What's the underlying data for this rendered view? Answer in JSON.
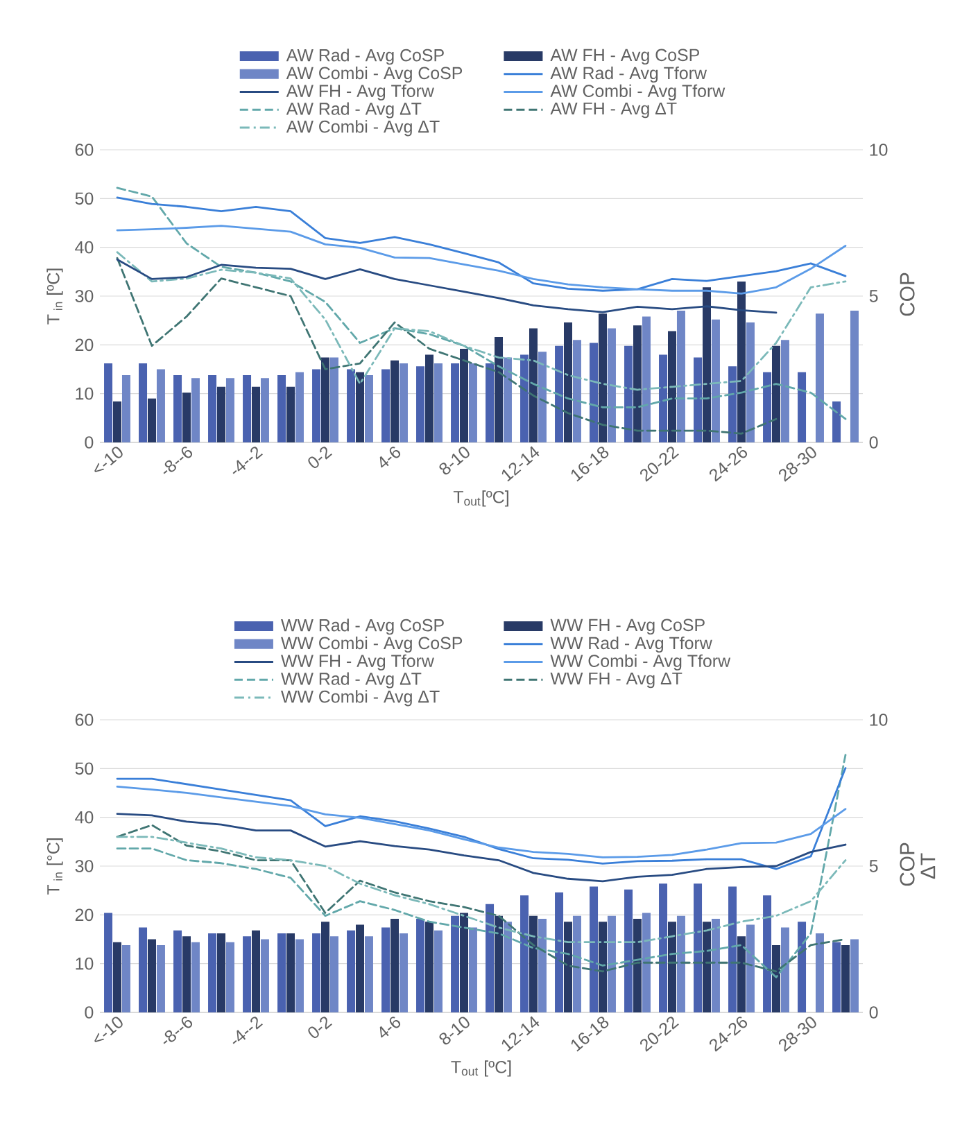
{
  "chart_data": [
    {
      "type": "bar",
      "categories": [
        "<-10",
        null,
        "-8--6",
        null,
        "-4--2",
        null,
        "0-2",
        null,
        "4-6",
        null,
        "8-10",
        null,
        "12-14",
        null,
        "16-18",
        null,
        "20-22",
        null,
        "24-26",
        null,
        "28-30",
        null
      ],
      "xlabel": "T$_{out}$[ºC]",
      "ylabel": "T$_{ in}$ [ºC]",
      "y2label": "COP",
      "ylim": [
        0,
        60
      ],
      "yticks": [
        0,
        10,
        20,
        30,
        40,
        50,
        60
      ],
      "y2lim": [
        0,
        10
      ],
      "y2ticks": [
        0,
        5,
        10
      ],
      "grid": "y",
      "legend": "top",
      "series": [
        {
          "name": "AW Rad - Avg CoSP",
          "axis": "y2",
          "color": "#4a62b0",
          "values": [
            2.7,
            2.7,
            2.3,
            2.3,
            2.3,
            2.3,
            2.5,
            2.5,
            2.5,
            2.6,
            2.7,
            2.7,
            3.0,
            3.3,
            3.4,
            3.3,
            3.0,
            2.9,
            2.6,
            2.4,
            2.4,
            1.4
          ]
        },
        {
          "name": "AW FH - Avg CoSP",
          "axis": "y2",
          "color": "#283a66",
          "values": [
            1.4,
            1.5,
            1.7,
            1.9,
            1.9,
            1.9,
            2.9,
            2.4,
            2.8,
            3.0,
            3.2,
            3.6,
            3.9,
            4.1,
            4.4,
            4.0,
            3.8,
            5.3,
            5.5,
            3.3,
            null,
            null
          ]
        },
        {
          "name": "AW Combi - Avg CoSP",
          "axis": "y2",
          "color": "#6f86c6",
          "values": [
            2.3,
            2.5,
            2.2,
            2.2,
            2.2,
            2.4,
            2.9,
            2.3,
            2.7,
            2.7,
            2.7,
            2.9,
            3.1,
            3.5,
            3.9,
            4.3,
            4.5,
            4.2,
            4.1,
            3.5,
            4.4,
            4.5
          ]
        },
        {
          "name": "AW Rad - Avg Tforw",
          "type": "line",
          "axis": "y",
          "line_style": "solid",
          "color": "#3a7fd8",
          "values": [
            50.2,
            48.9,
            48.3,
            47.4,
            48.3,
            47.4,
            41.9,
            40.9,
            42.1,
            40.6,
            38.8,
            36.9,
            32.6,
            31.5,
            31.1,
            31.4,
            33.5,
            33.1,
            34.1,
            35.1,
            36.7,
            34.1
          ]
        },
        {
          "name": "AW FH - Avg Tforw",
          "type": "line",
          "axis": "y",
          "line_style": "solid",
          "color": "#284b82",
          "values": [
            37.5,
            33.5,
            33.9,
            36.4,
            35.8,
            35.6,
            33.5,
            35.5,
            33.5,
            32.2,
            30.9,
            29.6,
            28.1,
            27.3,
            26.7,
            27.8,
            27.3,
            27.9,
            27.1,
            26.6,
            null,
            null
          ]
        },
        {
          "name": "AW Combi - Avg Tforw",
          "type": "line",
          "axis": "y",
          "line_style": "solid",
          "color": "#5b9be8",
          "values": [
            43.5,
            43.7,
            44.0,
            44.4,
            43.8,
            43.2,
            40.6,
            39.9,
            37.9,
            37.8,
            36.5,
            35.2,
            33.5,
            32.4,
            31.8,
            31.4,
            31.1,
            31.1,
            30.5,
            31.8,
            35.6,
            40.3
          ]
        },
        {
          "name": "AW Rad - Avg ΔT",
          "type": "line",
          "axis": "y2",
          "line_style": "dashed",
          "color": "#62a8aa",
          "values": [
            8.7,
            8.4,
            6.8,
            6.0,
            5.8,
            5.5,
            4.8,
            3.4,
            3.9,
            3.7,
            3.3,
            2.6,
            2.0,
            1.5,
            1.2,
            1.2,
            1.5,
            1.5,
            1.7,
            2.0,
            1.7,
            0.8
          ]
        },
        {
          "name": "AW FH - Avg ΔT",
          "type": "line",
          "axis": "y2",
          "line_style": "dashed",
          "color": "#3f7573",
          "values": [
            6.3,
            3.3,
            4.3,
            5.6,
            5.3,
            5.0,
            2.5,
            2.7,
            4.1,
            3.2,
            2.8,
            2.4,
            1.6,
            1.0,
            0.6,
            0.4,
            0.4,
            0.4,
            0.3,
            0.8,
            null,
            null
          ]
        },
        {
          "name": "AW Combi - Avg ΔT",
          "type": "line",
          "axis": "y2",
          "line_style": "dashdot",
          "color": "#7bb9b9",
          "values": [
            6.5,
            5.5,
            5.6,
            5.9,
            5.8,
            5.6,
            4.2,
            2.0,
            3.9,
            3.8,
            3.3,
            2.9,
            2.8,
            2.3,
            2.0,
            1.8,
            1.9,
            2.0,
            2.1,
            3.4,
            5.3,
            5.5
          ]
        }
      ]
    },
    {
      "type": "bar",
      "categories": [
        "<-10",
        null,
        "-8--6",
        null,
        "-4--2",
        null,
        "0-2",
        null,
        "4-6",
        null,
        "8-10",
        null,
        "12-14",
        null,
        "16-18",
        null,
        "20-22",
        null,
        "24-26",
        null,
        "28-30",
        null
      ],
      "xlabel": "T$_{out}$ [ºC]",
      "ylabel": "T$_{ in}$ [°C]",
      "y2label": "COP ΔT",
      "ylim": [
        0,
        60
      ],
      "yticks": [
        0,
        10,
        20,
        30,
        40,
        50,
        60
      ],
      "y2lim": [
        0,
        10
      ],
      "y2ticks": [
        0,
        5,
        10
      ],
      "grid": "y",
      "legend": "top",
      "series": [
        {
          "name": "WW Rad - Avg CoSP",
          "axis": "y2",
          "color": "#4a62b0",
          "values": [
            3.4,
            2.9,
            2.8,
            2.7,
            2.6,
            2.7,
            2.7,
            2.8,
            2.9,
            3.2,
            3.3,
            3.7,
            4.0,
            4.1,
            4.3,
            4.2,
            4.4,
            4.4,
            4.3,
            4.0,
            3.1,
            2.4
          ]
        },
        {
          "name": "WW FH - Avg CoSP",
          "axis": "y2",
          "color": "#283a66",
          "values": [
            2.4,
            2.5,
            2.6,
            2.7,
            2.8,
            2.7,
            3.1,
            3.0,
            3.2,
            3.1,
            3.4,
            3.3,
            3.3,
            3.1,
            3.1,
            3.2,
            3.1,
            3.1,
            2.6,
            2.3,
            null,
            2.3
          ]
        },
        {
          "name": "WW Combi - Avg CoSP",
          "axis": "y2",
          "color": "#6f86c6",
          "values": [
            2.3,
            2.3,
            2.4,
            2.4,
            2.5,
            2.5,
            2.6,
            2.6,
            2.7,
            2.8,
            2.9,
            3.1,
            3.2,
            3.3,
            3.3,
            3.4,
            3.3,
            3.2,
            3.0,
            2.9,
            2.7,
            2.5
          ]
        },
        {
          "name": "WW Rad - Avg Tforw",
          "type": "line",
          "axis": "y",
          "line_style": "solid",
          "color": "#3a7fd8",
          "values": [
            47.9,
            47.9,
            46.8,
            45.7,
            44.6,
            43.5,
            38.2,
            40.2,
            39.2,
            37.7,
            36.0,
            33.5,
            31.6,
            31.3,
            30.5,
            31.0,
            31.1,
            31.4,
            31.4,
            29.4,
            32.0,
            50.1
          ]
        },
        {
          "name": "WW FH - Avg Tforw",
          "type": "line",
          "axis": "y",
          "line_style": "solid",
          "color": "#284b82",
          "values": [
            40.7,
            40.4,
            39.1,
            38.5,
            37.3,
            37.3,
            34.0,
            35.1,
            34.1,
            33.4,
            32.2,
            31.2,
            28.6,
            27.4,
            26.9,
            27.8,
            28.2,
            29.4,
            29.8,
            30.0,
            32.9,
            34.4
          ]
        },
        {
          "name": "WW Combi - Avg Tforw",
          "type": "line",
          "axis": "y",
          "line_style": "solid",
          "color": "#5b9be8",
          "values": [
            46.3,
            45.7,
            45.0,
            44.1,
            43.2,
            42.3,
            40.6,
            39.9,
            38.6,
            37.3,
            35.5,
            33.8,
            32.9,
            32.5,
            31.8,
            31.9,
            32.3,
            33.4,
            34.7,
            34.8,
            36.6,
            41.7
          ]
        },
        {
          "name": "WW Rad - Avg ΔT",
          "type": "line",
          "axis": "y2",
          "line_style": "dashed",
          "color": "#62a8aa",
          "values": [
            5.6,
            5.6,
            5.2,
            5.1,
            4.9,
            4.6,
            3.3,
            3.8,
            3.5,
            3.1,
            2.9,
            2.7,
            2.2,
            2.0,
            1.6,
            1.8,
            2.0,
            2.1,
            2.3,
            1.2,
            2.7,
            8.8
          ]
        },
        {
          "name": "WW FH - Avg ΔT",
          "type": "line",
          "axis": "y2",
          "line_style": "dashed",
          "color": "#3f7573",
          "values": [
            6.0,
            6.4,
            5.7,
            5.5,
            5.2,
            5.2,
            3.4,
            4.5,
            4.1,
            3.8,
            3.6,
            3.3,
            2.3,
            1.6,
            1.4,
            1.7,
            1.7,
            1.7,
            1.7,
            1.4,
            2.3,
            2.5
          ]
        },
        {
          "name": "WW Combi - Avg ΔT",
          "type": "line",
          "axis": "y2",
          "line_style": "dashdot",
          "color": "#7bb9b9",
          "values": [
            6.0,
            6.0,
            5.8,
            5.6,
            5.3,
            5.2,
            5.0,
            4.4,
            4.0,
            3.7,
            3.3,
            2.9,
            2.6,
            2.4,
            2.4,
            2.4,
            2.6,
            2.8,
            3.1,
            3.3,
            3.8,
            5.2
          ]
        }
      ]
    }
  ]
}
